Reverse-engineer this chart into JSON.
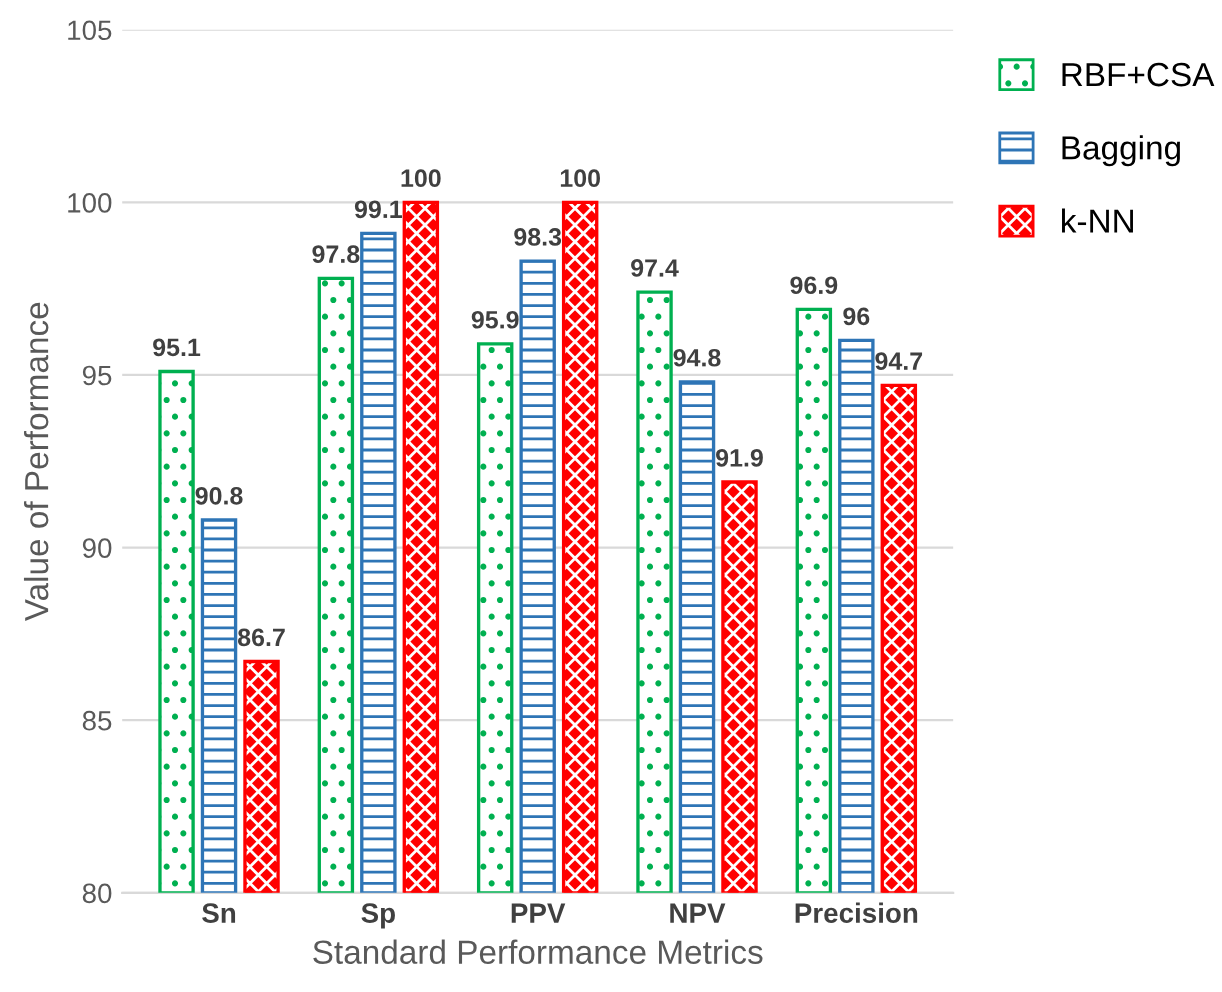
{
  "chart_data": {
    "type": "bar",
    "xlabel": "Standard Performance Metrics",
    "ylabel": "Value of Performance",
    "categories": [
      "Sn",
      "Sp",
      "PPV",
      "NPV",
      "Precision"
    ],
    "series": [
      {
        "name": "RBF+CSA",
        "color": "#00b050",
        "values": [
          95.1,
          97.8,
          95.9,
          97.4,
          96.9
        ]
      },
      {
        "name": "Bagging",
        "color": "#2e75b6",
        "values": [
          90.8,
          99.1,
          98.3,
          94.8,
          96
        ]
      },
      {
        "name": "k-NN",
        "color": "#ff0000",
        "values": [
          86.7,
          100,
          100,
          91.9,
          94.7
        ]
      }
    ],
    "ylim": [
      80,
      105
    ],
    "yticks": [
      80,
      85,
      90,
      95,
      100,
      105
    ],
    "grid": "y",
    "legend": "right",
    "data_labels": true
  }
}
